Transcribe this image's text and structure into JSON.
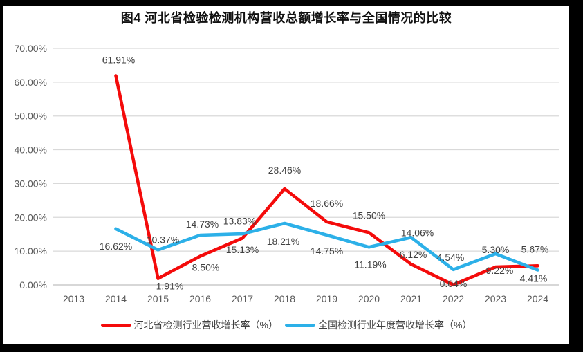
{
  "frame": {
    "kind": "scanned chart image with black border"
  },
  "chart_data": {
    "type": "line",
    "title": "图4  河北省检验检测机构营收总额增长率与全国情况的比较",
    "categories": [
      "2013",
      "2014",
      "2015",
      "2016",
      "2017",
      "2018",
      "2019",
      "2020",
      "2021",
      "2022",
      "2023",
      "2024"
    ],
    "series": [
      {
        "name": "河北省检测行业营收增长率（%）",
        "color": "#f40b0b",
        "values": [
          null,
          61.91,
          1.91,
          8.5,
          13.83,
          28.46,
          18.66,
          15.5,
          6.12,
          0.04,
          5.3,
          5.67
        ],
        "label_offsets": [
          null,
          [
            4,
            -23
          ],
          [
            17,
            11
          ],
          [
            8,
            16
          ],
          [
            -4,
            -25
          ],
          [
            0,
            -27
          ],
          [
            0,
            -27
          ],
          [
            0,
            -25
          ],
          [
            3,
            -14
          ],
          [
            0,
            -2
          ],
          [
            0,
            -25
          ],
          [
            -4,
            -24
          ]
        ]
      },
      {
        "name": "全国检测行业年度营收增长率（%）",
        "color": "#2cb0e8",
        "values": [
          null,
          16.62,
          10.37,
          14.73,
          15.13,
          18.21,
          14.75,
          11.19,
          14.06,
          4.54,
          9.22,
          4.41
        ],
        "label_offsets": [
          null,
          [
            0,
            25
          ],
          [
            7,
            -15
          ],
          [
            3,
            -16
          ],
          [
            0,
            23
          ],
          [
            -2,
            26
          ],
          [
            0,
            23
          ],
          [
            2,
            25
          ],
          [
            9,
            -7
          ],
          [
            -4,
            -18
          ],
          [
            6,
            24
          ],
          [
            -6,
            12
          ]
        ]
      }
    ],
    "xlabel": "",
    "ylabel": "",
    "ylim": [
      0,
      70
    ],
    "y_ticks": [
      "0.00%",
      "10.00%",
      "20.00%",
      "30.00%",
      "40.00%",
      "50.00%",
      "60.00%",
      "70.00%"
    ],
    "grid": true,
    "legend_position": "bottom",
    "data_label_format": "0.00%",
    "colors": {
      "gridline": "#d9d9d9",
      "zero_line": "#bfbfbf",
      "tick_text": "#595959",
      "data_label_text": "#404040",
      "background": "#ffffff",
      "border": "#000000"
    }
  }
}
